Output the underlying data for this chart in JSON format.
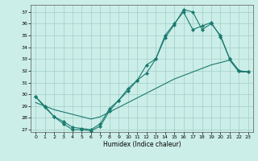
{
  "xlabel": "Humidex (Indice chaleur)",
  "bg_color": "#cceee8",
  "line_color": "#1a7a6e",
  "xlim": [
    -0.5,
    23.5
  ],
  "ylim": [
    26.8,
    37.6
  ],
  "yticks": [
    27,
    28,
    29,
    30,
    31,
    32,
    33,
    34,
    35,
    36,
    37
  ],
  "xticks": [
    0,
    1,
    2,
    3,
    4,
    5,
    6,
    7,
    8,
    9,
    10,
    11,
    12,
    13,
    14,
    15,
    16,
    17,
    18,
    19,
    20,
    21,
    22,
    23
  ],
  "line1_x": [
    0,
    1,
    2,
    3,
    4,
    5,
    6,
    7,
    8,
    9,
    10,
    11,
    12,
    13,
    14,
    15,
    16,
    17,
    18,
    19,
    20,
    21,
    22,
    23
  ],
  "line1_y": [
    29.8,
    29.0,
    28.1,
    27.5,
    27.0,
    27.0,
    26.9,
    27.3,
    28.6,
    29.5,
    30.3,
    31.2,
    32.5,
    33.0,
    34.8,
    35.9,
    37.2,
    37.0,
    35.5,
    36.0,
    35.0,
    33.0,
    32.0,
    31.9
  ],
  "line2_x": [
    0,
    1,
    2,
    3,
    4,
    5,
    6,
    7,
    8,
    9,
    10,
    11,
    12,
    13,
    14,
    15,
    16,
    17,
    18,
    19,
    20,
    21,
    22,
    23
  ],
  "line2_y": [
    29.8,
    28.9,
    28.1,
    27.7,
    27.2,
    27.1,
    27.0,
    27.5,
    28.8,
    29.5,
    30.5,
    31.2,
    31.8,
    33.0,
    35.0,
    36.0,
    37.0,
    35.5,
    35.8,
    36.1,
    34.9,
    33.0,
    32.0,
    31.9
  ],
  "line3_x": [
    0,
    1,
    2,
    3,
    4,
    5,
    6,
    7,
    8,
    9,
    10,
    11,
    12,
    13,
    14,
    15,
    16,
    17,
    18,
    19,
    20,
    21,
    22,
    23
  ],
  "line3_y": [
    29.3,
    29.0,
    28.7,
    28.5,
    28.3,
    28.1,
    27.9,
    28.1,
    28.5,
    28.9,
    29.3,
    29.7,
    30.1,
    30.5,
    30.9,
    31.3,
    31.6,
    31.9,
    32.2,
    32.5,
    32.7,
    32.9,
    31.9,
    31.9
  ],
  "grid_color": "#a0cdc8",
  "markersize": 2.2
}
